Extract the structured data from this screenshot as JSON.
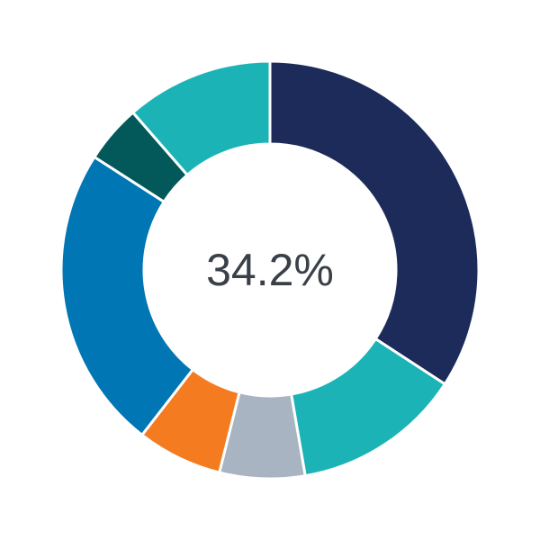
{
  "chart_data": {
    "type": "pie",
    "variant": "donut",
    "center_label": "34.2%",
    "values": [
      34.2,
      13.1,
      6.6,
      6.6,
      23.6,
      4.5,
      11.4
    ],
    "colors": [
      "#1c2b5a",
      "#1bb3b6",
      "#a8b4c1",
      "#f47b20",
      "#0076b5",
      "#03595a",
      "#1bb3b6"
    ],
    "start": "top",
    "direction": "clockwise"
  }
}
